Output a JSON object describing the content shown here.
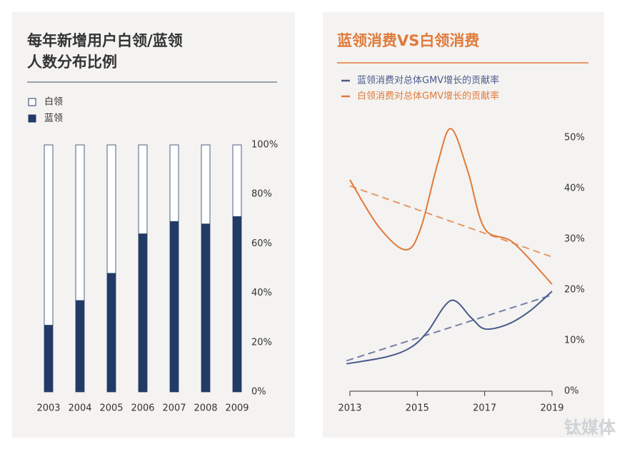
{
  "chart_data": [
    {
      "type": "stacked-bar",
      "title": [
        "每年新增用户白领/蓝领",
        "人数分布比例"
      ],
      "categories": [
        "2003",
        "2004",
        "2005",
        "2006",
        "2007",
        "2008",
        "2009"
      ],
      "series": [
        {
          "name": "白领",
          "color": "#ffffff",
          "values": [
            73,
            63,
            52,
            36,
            31,
            32,
            29
          ]
        },
        {
          "name": "蓝领",
          "color": "#223a66",
          "values": [
            27,
            37,
            48,
            64,
            69,
            68,
            71
          ]
        }
      ],
      "ylim": [
        0,
        100
      ],
      "yticks": [
        {
          "value": 0,
          "label": "0%"
        },
        {
          "value": 20,
          "label": "20%"
        },
        {
          "value": 40,
          "label": "40%"
        },
        {
          "value": 60,
          "label": "60%"
        },
        {
          "value": 80,
          "label": "80%"
        },
        {
          "value": 100,
          "label": "100%"
        }
      ]
    },
    {
      "type": "line",
      "title": [
        "蓝领消费VS白领消费"
      ],
      "series": [
        {
          "name": "蓝领消费对总体GMV增长的贡献率",
          "color": "#4a5a8c",
          "x": [
            2012.9,
            2014.1,
            2014.8,
            2015.3,
            2016.0,
            2016.6,
            2017.0,
            2017.65,
            2018.3,
            2019.0
          ],
          "values": [
            5.4,
            6.8,
            8.6,
            11.7,
            17.9,
            14.5,
            12.3,
            13.1,
            15.6,
            19.7
          ],
          "trend": {
            "x": [
              2012.9,
              2019.0
            ],
            "values": [
              6,
              19
            ]
          }
        },
        {
          "name": "白领消费对总体GMV增长的贡献率",
          "color": "#e07a3a",
          "x": [
            2013.0,
            2013.85,
            2014.65,
            2015.1,
            2015.6,
            2016.0,
            2016.5,
            2017.0,
            2017.85,
            2019.0
          ],
          "values": [
            41.7,
            32.5,
            27.9,
            32.1,
            44.8,
            51.8,
            43.4,
            32.1,
            29.3,
            21.1
          ],
          "trend": {
            "x": [
              2013.0,
              2019.0
            ],
            "values": [
              40.5,
              26.5
            ]
          }
        }
      ],
      "xlim": [
        2013,
        2019
      ],
      "xticks": [
        2013,
        2015,
        2017,
        2019
      ],
      "ylim": [
        0,
        50
      ],
      "yticks": [
        {
          "value": 0,
          "label": "0%"
        },
        {
          "value": 10,
          "label": "10%"
        },
        {
          "value": 20,
          "label": "20%"
        },
        {
          "value": 30,
          "label": "30%"
        },
        {
          "value": 40,
          "label": "40%"
        },
        {
          "value": 50,
          "label": "50%"
        }
      ]
    }
  ],
  "watermark": "钛媒体"
}
